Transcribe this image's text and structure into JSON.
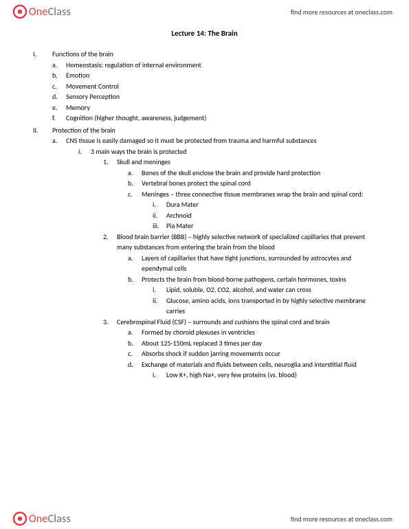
{
  "brand": {
    "one": "One",
    "class": "Class"
  },
  "headerLink": "find more resources at oneclass.com",
  "footerLink": "find more resources at oneclass.com",
  "title": "Lecture 14: The Brain",
  "outline": [
    {
      "m": "I.",
      "t": "Functions of the brain",
      "children": [
        {
          "m": "a.",
          "t": "Homeostasis: regulation of internal environment"
        },
        {
          "m": "b.",
          "t": "Emotion"
        },
        {
          "m": "c.",
          "t": "Movement Control"
        },
        {
          "m": "d.",
          "t": "Sensory Perception"
        },
        {
          "m": "e.",
          "t": "Memory"
        },
        {
          "m": "f.",
          "t": "Cognition (higher thought, awareness, judgement)"
        }
      ]
    },
    {
      "m": "II.",
      "t": "Protection of the brain",
      "children": [
        {
          "m": "a.",
          "t": "CNS tissue is easily damaged so it must be protected from trauma and harmful substances",
          "children": [
            {
              "m": "i.",
              "t": "3 main ways the brain is protected",
              "children": [
                {
                  "m": "1.",
                  "t": "Skull and meninges",
                  "children": [
                    {
                      "m": "a.",
                      "t": "Bones of the skull enclose the brain and provide hard protection"
                    },
                    {
                      "m": "b.",
                      "t": "Vertebral bones protect the spinal cord"
                    },
                    {
                      "m": "c.",
                      "t": "Meninges – three connective tissue membranes wrap the brain and spinal cord:",
                      "children": [
                        {
                          "m": "i.",
                          "t": "Dura Mater"
                        },
                        {
                          "m": "ii.",
                          "t": "Archnoid"
                        },
                        {
                          "m": "iii.",
                          "t": "Pia Mater"
                        }
                      ]
                    }
                  ]
                },
                {
                  "m": "2.",
                  "t": "Blood brain barrier (BBB) – highly selective network of specialized capillaries that prevent many substances from entering the brain from the blood",
                  "children": [
                    {
                      "m": "a.",
                      "t": "Layers of capillaries that have tight junctions, surrounded by astrocytes and ependymal cells"
                    },
                    {
                      "m": "b.",
                      "t": "Protects the brain from blood-borne pathogens, certain hormones, toxins",
                      "children": [
                        {
                          "m": "i.",
                          "t": "Lipid, soluble, O2, CO2, alcohol, and water can cross"
                        },
                        {
                          "m": "ii.",
                          "t": "Glucose, amino acids, ions transported in by highly selective membrane carries"
                        }
                      ]
                    }
                  ]
                },
                {
                  "m": "3.",
                  "t": "Cerebrospinal Fluid (CSF) – surrounds and cushions the spinal cord and brain",
                  "children": [
                    {
                      "m": "a.",
                      "t": "Formed by choroid plexuses in ventricles"
                    },
                    {
                      "m": "b.",
                      "t": "About 125-150mL replaced 3 times per day"
                    },
                    {
                      "m": "c.",
                      "t": "Absorbs shock if sudden jarring movements occur"
                    },
                    {
                      "m": "d.",
                      "t": "Exchange of materials and fluids between cells, neuroglia and interstitial fluid",
                      "children": [
                        {
                          "m": "i.",
                          "t": "Low K+, high Na+, very few proteins (vs. blood)"
                        }
                      ]
                    }
                  ]
                }
              ]
            }
          ]
        }
      ]
    }
  ]
}
